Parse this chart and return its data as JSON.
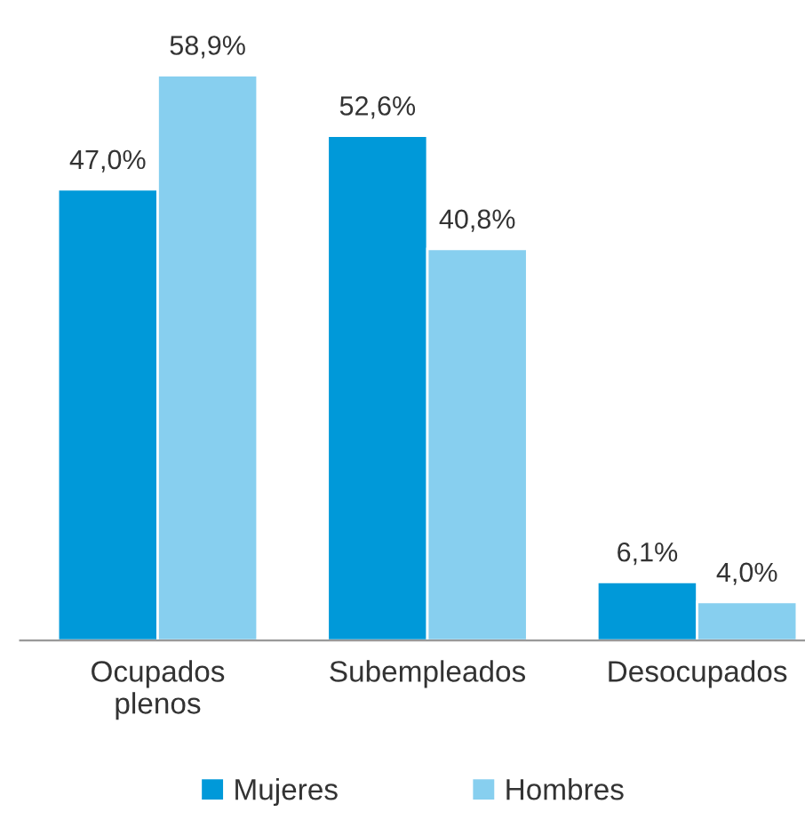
{
  "chart_data": {
    "type": "bar",
    "categories": [
      "Ocupados\nplenos",
      "Subempleados",
      "Desocupados"
    ],
    "series": [
      {
        "name": "Mujeres",
        "color": "#0099d9",
        "values": [
          47.0,
          52.6,
          6.1
        ],
        "value_labels": [
          "47,0%",
          "52,6%",
          "6,1%"
        ]
      },
      {
        "name": "Hombres",
        "color": "#87cfef",
        "values": [
          58.9,
          40.8,
          4.0
        ],
        "value_labels": [
          "58,9%",
          "40,8%",
          "4,0%"
        ]
      }
    ],
    "legend": "bottom",
    "grid": false
  }
}
